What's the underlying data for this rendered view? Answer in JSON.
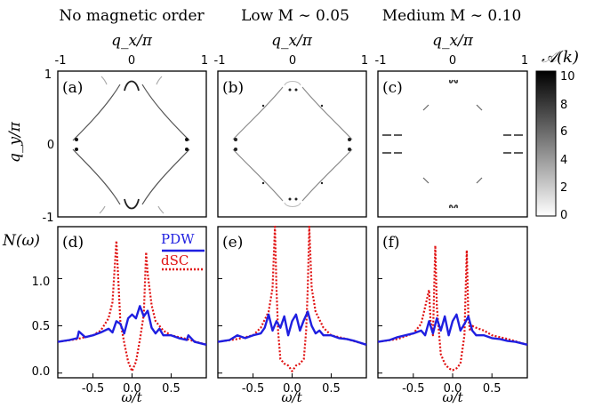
{
  "figure": {
    "columns": [
      {
        "title": "No magnetic order",
        "top_axis": "q_x/π"
      },
      {
        "title": "Low M ∼ 0.05",
        "top_axis": "q_x/π"
      },
      {
        "title": "Medium M ∼ 0.10",
        "top_axis": "q_x/π"
      }
    ],
    "top_ticks": [
      "-1",
      "0",
      "1"
    ],
    "y_axis_label": "q_y/π",
    "y_ticks_top": [
      "1",
      "0",
      "-1"
    ],
    "colorbar": {
      "label": "𝒜(k)",
      "ticks": [
        "10",
        "8",
        "6",
        "4",
        "2",
        "0"
      ],
      "colormap": "gray-reversed"
    },
    "panel_labels_top": [
      "(a)",
      "(b)",
      "(c)"
    ],
    "panel_labels_bottom": [
      "(d)",
      "(e)",
      "(f)"
    ],
    "bottom_ylabel": "N(ω)",
    "bottom_yticks": [
      "1.0",
      "0.5",
      "0.0"
    ],
    "bottom_xticks": [
      "-0.5",
      "0.0",
      "0.5"
    ],
    "bottom_xlabel": "ω/t",
    "legend": [
      {
        "label": "PDW",
        "color": "#1f1fe0",
        "style": "solid"
      },
      {
        "label": "dSC",
        "color": "#e01010",
        "style": "dotted"
      }
    ]
  },
  "chart_data": [
    {
      "type": "line",
      "panel": "(d)",
      "xlim": [
        -0.95,
        0.95
      ],
      "ylim": [
        -0.05,
        1.55
      ],
      "series": [
        {
          "name": "PDW",
          "x": [
            -0.95,
            -0.8,
            -0.7,
            -0.68,
            -0.6,
            -0.5,
            -0.4,
            -0.3,
            -0.25,
            -0.2,
            -0.15,
            -0.1,
            -0.05,
            0.0,
            0.05,
            0.1,
            0.15,
            0.2,
            0.25,
            0.3,
            0.35,
            0.4,
            0.5,
            0.6,
            0.7,
            0.72,
            0.8,
            0.95
          ],
          "y": [
            0.33,
            0.35,
            0.37,
            0.44,
            0.38,
            0.4,
            0.43,
            0.47,
            0.43,
            0.55,
            0.52,
            0.42,
            0.58,
            0.62,
            0.58,
            0.71,
            0.6,
            0.66,
            0.48,
            0.42,
            0.47,
            0.4,
            0.4,
            0.37,
            0.35,
            0.4,
            0.33,
            0.3
          ]
        },
        {
          "name": "dSC",
          "x": [
            -0.95,
            -0.7,
            -0.5,
            -0.4,
            -0.3,
            -0.25,
            -0.2,
            -0.18,
            -0.15,
            -0.1,
            -0.05,
            0.0,
            0.05,
            0.1,
            0.15,
            0.18,
            0.2,
            0.25,
            0.3,
            0.4,
            0.5,
            0.7,
            0.95
          ],
          "y": [
            0.33,
            0.36,
            0.4,
            0.45,
            0.58,
            0.75,
            1.4,
            1.05,
            0.55,
            0.32,
            0.12,
            0.02,
            0.12,
            0.35,
            0.62,
            1.28,
            1.05,
            0.72,
            0.55,
            0.45,
            0.4,
            0.36,
            0.3
          ]
        }
      ]
    },
    {
      "type": "line",
      "panel": "(e)",
      "xlim": [
        -0.95,
        0.95
      ],
      "ylim": [
        -0.05,
        1.55
      ],
      "series": [
        {
          "name": "PDW",
          "x": [
            -0.95,
            -0.8,
            -0.7,
            -0.6,
            -0.5,
            -0.4,
            -0.35,
            -0.3,
            -0.25,
            -0.2,
            -0.15,
            -0.1,
            -0.05,
            0.0,
            0.05,
            0.1,
            0.15,
            0.2,
            0.25,
            0.3,
            0.35,
            0.4,
            0.5,
            0.6,
            0.7,
            0.8,
            0.95
          ],
          "y": [
            0.33,
            0.35,
            0.4,
            0.37,
            0.4,
            0.42,
            0.48,
            0.62,
            0.45,
            0.55,
            0.48,
            0.6,
            0.4,
            0.55,
            0.62,
            0.45,
            0.56,
            0.65,
            0.5,
            0.42,
            0.45,
            0.4,
            0.4,
            0.37,
            0.36,
            0.34,
            0.3
          ]
        },
        {
          "name": "dSC",
          "x": [
            -0.95,
            -0.7,
            -0.5,
            -0.4,
            -0.3,
            -0.25,
            -0.22,
            -0.2,
            -0.18,
            -0.15,
            -0.1,
            -0.05,
            0.0,
            0.05,
            0.1,
            0.15,
            0.18,
            0.2,
            0.22,
            0.25,
            0.3,
            0.4,
            0.5,
            0.7,
            0.95
          ],
          "y": [
            0.33,
            0.36,
            0.4,
            0.48,
            0.65,
            0.9,
            1.55,
            0.9,
            0.45,
            0.15,
            0.1,
            0.08,
            0.02,
            0.08,
            0.1,
            0.15,
            0.45,
            0.9,
            1.55,
            0.9,
            0.65,
            0.48,
            0.4,
            0.36,
            0.3
          ]
        }
      ]
    },
    {
      "type": "line",
      "panel": "(f)",
      "xlim": [
        -0.95,
        0.95
      ],
      "ylim": [
        -0.05,
        1.55
      ],
      "series": [
        {
          "name": "PDW",
          "x": [
            -0.95,
            -0.8,
            -0.7,
            -0.6,
            -0.5,
            -0.4,
            -0.35,
            -0.3,
            -0.25,
            -0.2,
            -0.15,
            -0.1,
            -0.05,
            0.0,
            0.05,
            0.1,
            0.15,
            0.2,
            0.25,
            0.3,
            0.4,
            0.5,
            0.6,
            0.7,
            0.8,
            0.95
          ],
          "y": [
            0.33,
            0.35,
            0.38,
            0.4,
            0.42,
            0.45,
            0.4,
            0.55,
            0.42,
            0.58,
            0.45,
            0.6,
            0.4,
            0.55,
            0.62,
            0.45,
            0.52,
            0.6,
            0.45,
            0.4,
            0.4,
            0.37,
            0.36,
            0.34,
            0.33,
            0.3
          ]
        },
        {
          "name": "dSC",
          "x": [
            -0.95,
            -0.7,
            -0.5,
            -0.4,
            -0.35,
            -0.3,
            -0.28,
            -0.25,
            -0.22,
            -0.2,
            -0.15,
            -0.1,
            -0.05,
            0.0,
            0.05,
            0.1,
            0.15,
            0.18,
            0.2,
            0.22,
            0.25,
            0.3,
            0.4,
            0.5,
            0.7,
            0.95
          ],
          "y": [
            0.33,
            0.36,
            0.42,
            0.52,
            0.7,
            0.88,
            0.55,
            0.4,
            1.35,
            0.7,
            0.2,
            0.1,
            0.05,
            0.03,
            0.05,
            0.1,
            0.4,
            1.3,
            0.6,
            0.45,
            0.5,
            0.48,
            0.45,
            0.4,
            0.36,
            0.3
          ]
        }
      ]
    }
  ]
}
